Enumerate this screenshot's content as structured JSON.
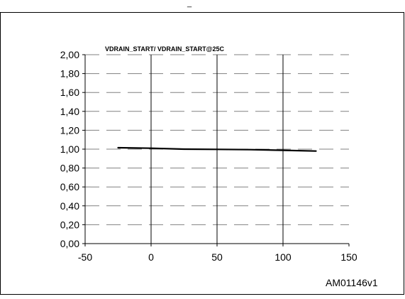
{
  "header_fragment": "_",
  "chart_data": {
    "type": "line",
    "title": "VDRAIN_START/ VDRAIN_START@25C",
    "xlabel": "",
    "ylabel": "",
    "xlim": [
      -50,
      150
    ],
    "ylim": [
      0,
      2
    ],
    "x_ticks": [
      "-50",
      "0",
      "50",
      "100",
      "150"
    ],
    "x_tick_values": [
      -50,
      0,
      50,
      100,
      150
    ],
    "y_ticks": [
      "0,00",
      "0,20",
      "0,40",
      "0,60",
      "0,80",
      "1,00",
      "1,20",
      "1,40",
      "1,60",
      "1,80",
      "2,00"
    ],
    "y_tick_values": [
      0,
      0.2,
      0.4,
      0.6,
      0.8,
      1.0,
      1.2,
      1.4,
      1.6,
      1.8,
      2.0
    ],
    "grid": {
      "horizontal": "dashed",
      "vertical": "solid"
    },
    "legend": "none",
    "series": [
      {
        "x": [
          -25,
          0,
          25,
          50,
          75,
          100,
          125
        ],
        "values": [
          1.015,
          1.01,
          1.0,
          0.998,
          0.995,
          0.988,
          0.98
        ],
        "color": "#000000"
      }
    ],
    "annotation": "AM01146v1"
  }
}
